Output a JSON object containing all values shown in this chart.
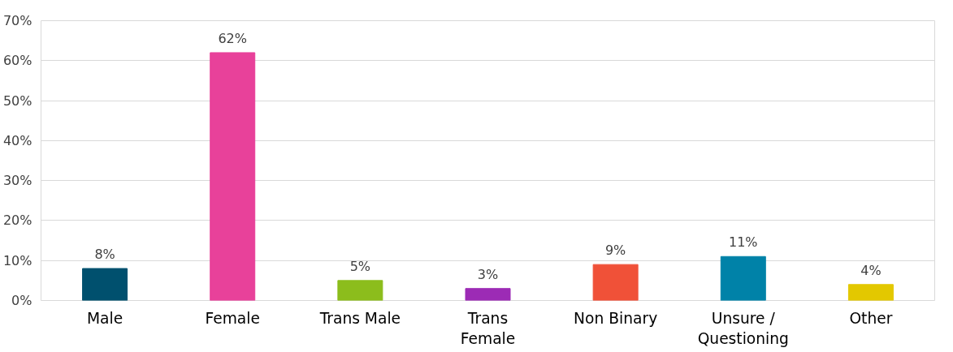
{
  "chart_data": {
    "type": "bar",
    "categories": [
      "Male",
      "Female",
      "Trans Male",
      "Trans\nFemale",
      "Non Binary",
      "Unsure /\nQuestioning",
      "Other"
    ],
    "values": [
      8,
      62,
      5,
      3,
      9,
      11,
      4
    ],
    "colors": [
      "#00506e",
      "#e8419a",
      "#8cbd1c",
      "#9c2bb5",
      "#f05138",
      "#0082a8",
      "#e3c800"
    ],
    "value_labels": [
      "8%",
      "62%",
      "5%",
      "3%",
      "9%",
      "11%",
      "4%"
    ],
    "ylim": [
      0,
      70
    ],
    "yticks": [
      {
        "value": 0,
        "label": "0%"
      },
      {
        "value": 10,
        "label": "10%"
      },
      {
        "value": 20,
        "label": "20%"
      },
      {
        "value": 30,
        "label": "30%"
      },
      {
        "value": 40,
        "label": "40%"
      },
      {
        "value": 50,
        "label": "50%"
      },
      {
        "value": 60,
        "label": "60%"
      },
      {
        "value": 70,
        "label": "70%"
      }
    ],
    "grid": "y"
  }
}
